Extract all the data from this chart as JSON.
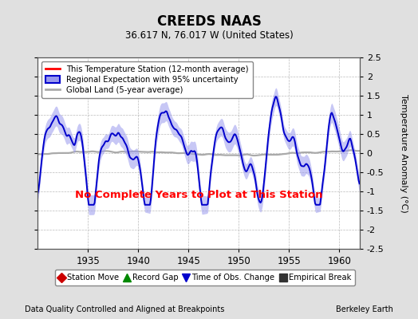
{
  "title": "CREEDS NAAS",
  "subtitle": "36.617 N, 76.017 W (United States)",
  "ylabel": "Temperature Anomaly (°C)",
  "xlabel_left": "Data Quality Controlled and Aligned at Breakpoints",
  "xlabel_right": "Berkeley Earth",
  "no_data_text": "No Complete Years to Plot at This Station",
  "ylim": [
    -2.5,
    2.5
  ],
  "xlim": [
    1930.0,
    1962.0
  ],
  "xticks": [
    1935,
    1940,
    1945,
    1950,
    1955,
    1960
  ],
  "yticks": [
    -2.5,
    -2.0,
    -1.5,
    -1.0,
    -0.5,
    0.0,
    0.5,
    1.0,
    1.5,
    2.0,
    2.5
  ],
  "bg_color": "#e0e0e0",
  "plot_bg_color": "#ffffff",
  "regional_color": "#0000cc",
  "regional_fill_color": "#9999ee",
  "global_color": "#aaaaaa",
  "station_color": "#ff0000",
  "legend1_items": [
    {
      "label": "This Temperature Station (12-month average)",
      "color": "#ff0000",
      "lw": 2
    },
    {
      "label": "Regional Expectation with 95% uncertainty",
      "color": "#0000cc",
      "lw": 2
    },
    {
      "label": "Global Land (5-year average)",
      "color": "#aaaaaa",
      "lw": 2
    }
  ],
  "legend2_items": [
    {
      "label": "Station Move",
      "marker": "D",
      "color": "#cc0000"
    },
    {
      "label": "Record Gap",
      "marker": "^",
      "color": "#008800"
    },
    {
      "label": "Time of Obs. Change",
      "marker": "v",
      "color": "#0000cc"
    },
    {
      "label": "Empirical Break",
      "marker": "s",
      "color": "#333333"
    }
  ],
  "time_start": 1930.0,
  "time_end": 1962.0,
  "n_points": 385
}
